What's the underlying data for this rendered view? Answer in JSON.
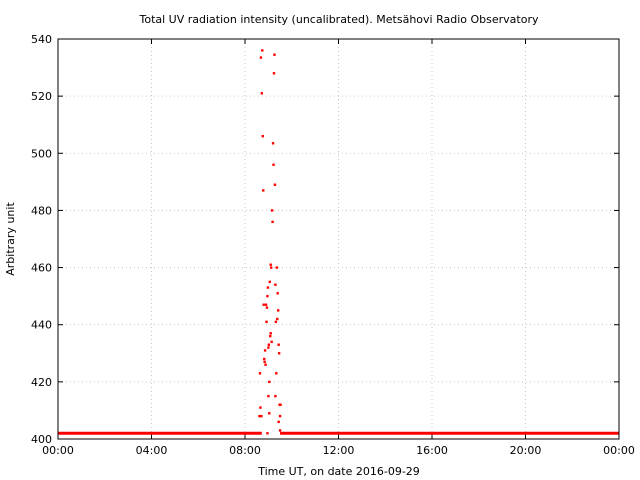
{
  "chart_data": {
    "type": "scatter",
    "title": "Total UV radiation intensity (uncalibrated). Metsähovi Radio Observatory",
    "xlabel": "Time UT, on date 2016-09-29",
    "ylabel": "Arbitrary unit",
    "x_unit": "hours UT",
    "xlim": [
      0,
      24
    ],
    "ylim": [
      400,
      540
    ],
    "x_ticks": [
      {
        "value": 0,
        "label": "00:00"
      },
      {
        "value": 4,
        "label": "04:00"
      },
      {
        "value": 8,
        "label": "08:00"
      },
      {
        "value": 12,
        "label": "12:00"
      },
      {
        "value": 16,
        "label": "16:00"
      },
      {
        "value": 20,
        "label": "20:00"
      },
      {
        "value": 24,
        "label": "00:00"
      }
    ],
    "y_ticks": [
      {
        "value": 400,
        "label": "400"
      },
      {
        "value": 420,
        "label": "420"
      },
      {
        "value": 440,
        "label": "440"
      },
      {
        "value": 460,
        "label": "460"
      },
      {
        "value": 480,
        "label": "480"
      },
      {
        "value": 500,
        "label": "500"
      },
      {
        "value": 520,
        "label": "520"
      },
      {
        "value": 540,
        "label": "540"
      }
    ],
    "grid": true,
    "marker_color": "#ff0000",
    "series": [
      {
        "baseline": [
          {
            "x_range": [
              0,
              8.72
            ],
            "y": 402
          },
          {
            "x_range": [
              9.5,
              24
            ],
            "y": 402
          }
        ],
        "points": [
          {
            "x": 8.62,
            "y": 408
          },
          {
            "x": 8.64,
            "y": 423
          },
          {
            "x": 8.66,
            "y": 411
          },
          {
            "x": 8.68,
            "y": 533.5
          },
          {
            "x": 8.7,
            "y": 408
          },
          {
            "x": 8.72,
            "y": 521
          },
          {
            "x": 8.74,
            "y": 536
          },
          {
            "x": 8.76,
            "y": 506
          },
          {
            "x": 8.78,
            "y": 487
          },
          {
            "x": 8.8,
            "y": 447
          },
          {
            "x": 8.82,
            "y": 428
          },
          {
            "x": 8.84,
            "y": 427
          },
          {
            "x": 8.86,
            "y": 431
          },
          {
            "x": 8.88,
            "y": 426
          },
          {
            "x": 8.9,
            "y": 447
          },
          {
            "x": 8.92,
            "y": 441
          },
          {
            "x": 8.94,
            "y": 446
          },
          {
            "x": 8.96,
            "y": 450
          },
          {
            "x": 8.98,
            "y": 453
          },
          {
            "x": 9.0,
            "y": 432
          },
          {
            "x": 9.02,
            "y": 433
          },
          {
            "x": 9.04,
            "y": 420
          },
          {
            "x": 9.06,
            "y": 455
          },
          {
            "x": 9.08,
            "y": 436
          },
          {
            "x": 9.1,
            "y": 461
          },
          {
            "x": 9.12,
            "y": 460
          },
          {
            "x": 9.14,
            "y": 434
          },
          {
            "x": 9.16,
            "y": 480
          },
          {
            "x": 9.18,
            "y": 476
          },
          {
            "x": 9.2,
            "y": 503.5
          },
          {
            "x": 9.22,
            "y": 496
          },
          {
            "x": 9.24,
            "y": 528
          },
          {
            "x": 9.26,
            "y": 534.5
          },
          {
            "x": 9.28,
            "y": 489
          },
          {
            "x": 9.3,
            "y": 454
          },
          {
            "x": 9.32,
            "y": 441
          },
          {
            "x": 9.34,
            "y": 423
          },
          {
            "x": 9.36,
            "y": 460
          },
          {
            "x": 9.38,
            "y": 442
          },
          {
            "x": 9.4,
            "y": 451
          },
          {
            "x": 9.42,
            "y": 445
          },
          {
            "x": 9.44,
            "y": 433
          },
          {
            "x": 9.46,
            "y": 430
          },
          {
            "x": 9.48,
            "y": 412
          },
          {
            "x": 9.5,
            "y": 408
          },
          {
            "x": 8.96,
            "y": 402
          },
          {
            "x": 9.0,
            "y": 415
          },
          {
            "x": 9.04,
            "y": 409
          },
          {
            "x": 9.1,
            "y": 437
          },
          {
            "x": 9.3,
            "y": 415
          },
          {
            "x": 9.44,
            "y": 406
          },
          {
            "x": 9.5,
            "y": 403
          },
          {
            "x": 9.52,
            "y": 412
          }
        ]
      }
    ]
  }
}
